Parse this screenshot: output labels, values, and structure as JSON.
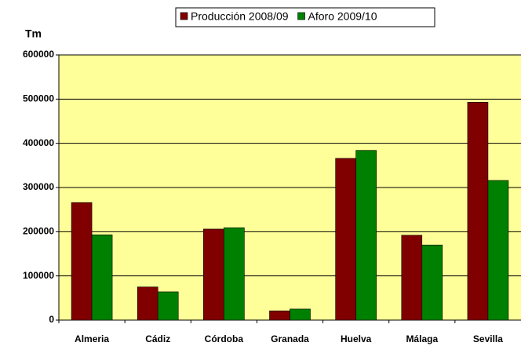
{
  "chart_data": {
    "type": "bar",
    "y_label": "Tm",
    "categories": [
      "Almeria",
      "Cádiz",
      "Córdoba",
      "Granada",
      "Huelva",
      "Málaga",
      "Sevilla"
    ],
    "series": [
      {
        "name": "Producción 2008/09",
        "color": "#800000",
        "values": [
          266000,
          75000,
          206000,
          21000,
          366000,
          192000,
          493000
        ]
      },
      {
        "name": "Aforo 2009/10",
        "color": "#008000",
        "values": [
          193000,
          64000,
          209000,
          25000,
          384000,
          170000,
          316000
        ]
      }
    ],
    "ylim": [
      0,
      600000
    ],
    "yticks": [
      0,
      100000,
      200000,
      300000,
      400000,
      500000,
      600000
    ],
    "grid": true,
    "legend": "top"
  }
}
